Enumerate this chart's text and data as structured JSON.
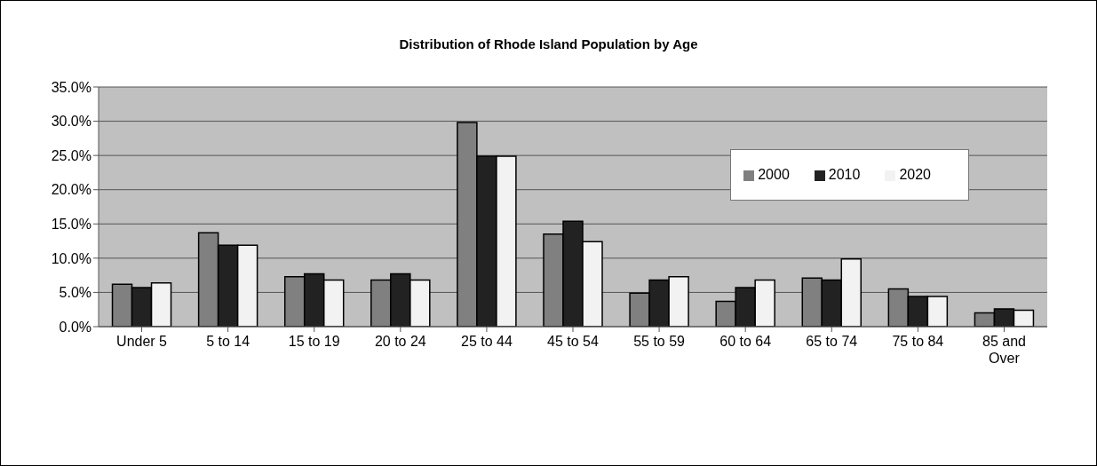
{
  "chart_data": {
    "type": "bar",
    "title": "Distribution of Rhode Island Population by Age",
    "categories": [
      "Under 5",
      "5 to 14",
      "15 to 19",
      "20 to 24",
      "25 to 44",
      "45 to 54",
      "55 to 59",
      "60 to 64",
      "65 to 74",
      "75 to 84",
      "85 and Over"
    ],
    "series": [
      {
        "name": "2000",
        "color": "#808080",
        "values": [
          6.2,
          13.7,
          7.3,
          6.8,
          29.8,
          13.5,
          4.9,
          3.7,
          7.1,
          5.5,
          2.0
        ]
      },
      {
        "name": "2010",
        "color": "#222222",
        "values": [
          5.7,
          11.9,
          7.7,
          7.7,
          24.9,
          15.4,
          6.8,
          5.7,
          6.8,
          4.4,
          2.6
        ]
      },
      {
        "name": "2020",
        "color": "#f2f2f2",
        "values": [
          6.4,
          11.9,
          6.8,
          6.8,
          24.9,
          12.4,
          7.3,
          6.8,
          9.9,
          4.4,
          2.4
        ]
      }
    ],
    "ylim": [
      0,
      35
    ],
    "yticks": [
      {
        "value": 0,
        "label": "0.0%"
      },
      {
        "value": 5,
        "label": "5.0%"
      },
      {
        "value": 10,
        "label": "10.0%"
      },
      {
        "value": 15,
        "label": "15.0%"
      },
      {
        "value": 20,
        "label": "20.0%"
      },
      {
        "value": 25,
        "label": "25.0%"
      },
      {
        "value": 30,
        "label": "30.0%"
      },
      {
        "value": 35,
        "label": "35.0%"
      }
    ],
    "grid": "y",
    "legend": "top right"
  }
}
